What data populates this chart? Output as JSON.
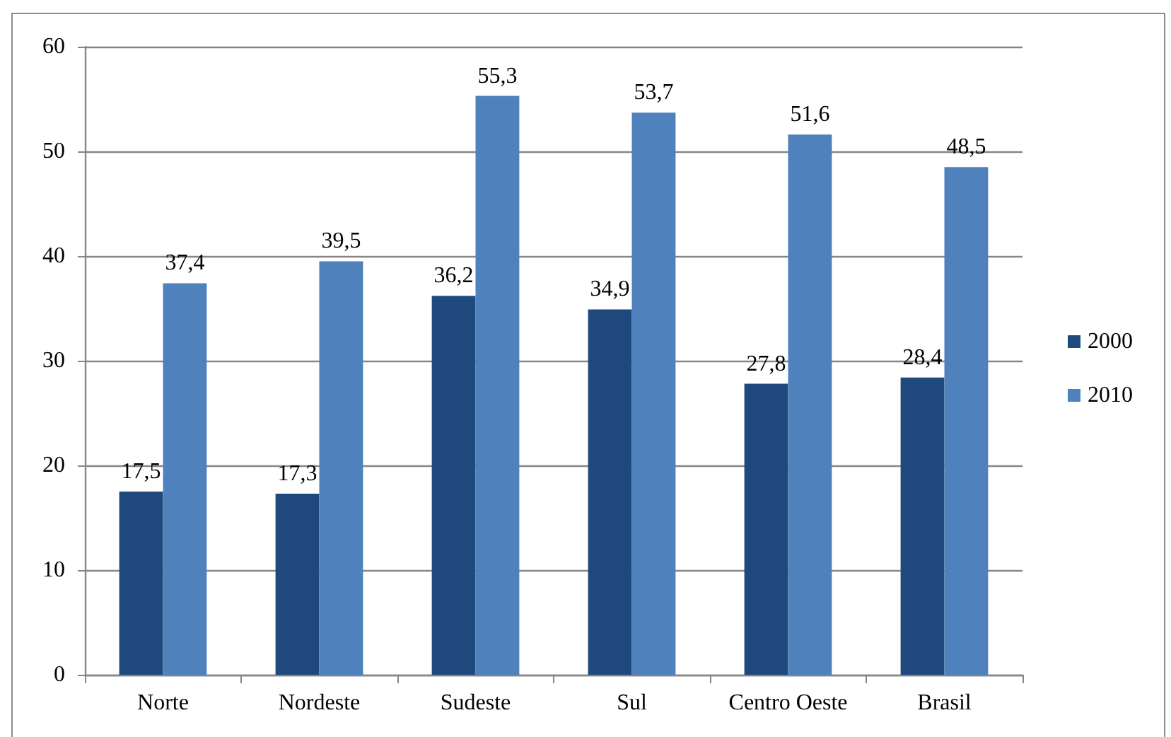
{
  "chart_data": {
    "type": "bar",
    "categories": [
      "Norte",
      "Nordeste",
      "Sudeste",
      "Sul",
      "Centro Oeste",
      "Brasil"
    ],
    "series": [
      {
        "name": "2000",
        "color": "#1f497d",
        "values": [
          17.5,
          17.3,
          36.2,
          34.9,
          27.8,
          28.4
        ],
        "value_labels": [
          "17,5",
          "17,3",
          "36,2",
          "34,9",
          "27,8",
          "28,4"
        ]
      },
      {
        "name": "2010",
        "color": "#4f81bd",
        "values": [
          37.4,
          39.5,
          55.3,
          53.7,
          51.6,
          48.5
        ],
        "value_labels": [
          "37,4",
          "39,5",
          "55,3",
          "53,7",
          "51,6",
          "48,5"
        ]
      }
    ],
    "ylim": [
      0,
      60
    ],
    "yticks": [
      0,
      10,
      20,
      30,
      40,
      50,
      60
    ],
    "grid": "y",
    "legend": "right"
  }
}
